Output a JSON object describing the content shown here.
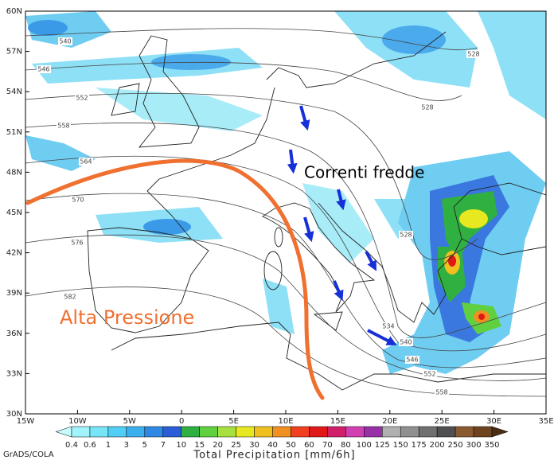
{
  "map": {
    "lat_labels": [
      "60N",
      "57N",
      "54N",
      "51N",
      "48N",
      "45N",
      "42N",
      "39N",
      "36N",
      "33N",
      "30N"
    ],
    "lon_labels": [
      "15W",
      "10W",
      "5W",
      "0",
      "5E",
      "10E",
      "15E",
      "20E",
      "25E",
      "30E",
      "35E"
    ],
    "contour_labels": [
      "540",
      "546",
      "552",
      "558",
      "564",
      "570",
      "576",
      "582",
      "528",
      "528",
      "528",
      "534",
      "540",
      "546",
      "552",
      "558"
    ],
    "annotations": {
      "cold_currents": "Correnti fredde",
      "high_pressure": "Alta Pressione"
    }
  },
  "colorbar": {
    "title": "Total Precipitation [mm/6h]",
    "levels": [
      0.4,
      0.6,
      1,
      3,
      5,
      7,
      10,
      15,
      20,
      25,
      30,
      40,
      50,
      60,
      70,
      80,
      100,
      125,
      150,
      175,
      200,
      250,
      300,
      350
    ],
    "colors": [
      "#c8fcfc",
      "#a0f4fa",
      "#78e4f8",
      "#50cef4",
      "#3cb0ee",
      "#2f88e4",
      "#2a5ed6",
      "#30b040",
      "#60d040",
      "#a8e040",
      "#e8e820",
      "#f0c020",
      "#f09020",
      "#f04020",
      "#e01818",
      "#d0206a",
      "#d040b0",
      "#9830a8",
      "#b0b0b0",
      "#909090",
      "#707070",
      "#505050",
      "#8a5a30",
      "#6e4420",
      "#4a2c10"
    ]
  },
  "credit": "GrADS/COLA"
}
